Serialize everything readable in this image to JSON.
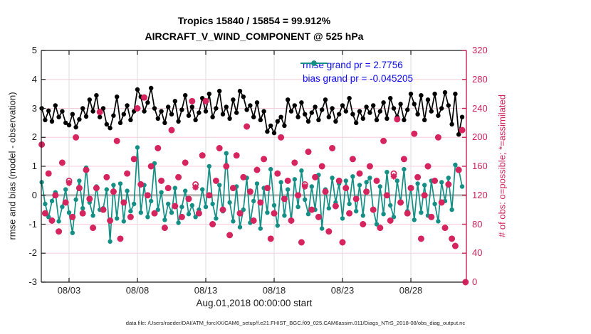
{
  "title": {
    "line1": "Tropics 15840 / 15854 = 99.912%",
    "line2": "AIRCRAFT_V_WIND_COMPONENT @ 525 hPa"
  },
  "legend": {
    "items": [
      {
        "label": "rmse grand pr = 2.7756",
        "series": "rmse",
        "color": "#000000"
      },
      {
        "label": "bias grand pr = -0.045205",
        "series": "bias",
        "color": "#148f85"
      }
    ],
    "text_color": "#0b0bf0"
  },
  "axes": {
    "left": {
      "label": "rmse and bias (model - observation)",
      "ticks": [
        5,
        4,
        3,
        2,
        1,
        0,
        -1,
        -2,
        -3
      ],
      "range": [
        -3,
        5
      ],
      "color": "#1a1a1a"
    },
    "right": {
      "label": "# of obs: o=possible; *=assimilated",
      "ticks": [
        320,
        280,
        240,
        200,
        160,
        120,
        80,
        40,
        0
      ],
      "range": [
        0,
        320
      ],
      "color": "#cb2158"
    },
    "x": {
      "label": "Aug.01,2018 00:00:00 start",
      "ticks": [
        {
          "day": 3,
          "label": "08/03"
        },
        {
          "day": 8,
          "label": "08/08"
        },
        {
          "day": 13,
          "label": "08/13"
        },
        {
          "day": 18,
          "label": "08/18"
        },
        {
          "day": 23,
          "label": "08/23"
        },
        {
          "day": 28,
          "label": "08/28"
        }
      ],
      "domain_days": [
        0.97,
        32.06
      ],
      "tick_text_color": "#262626"
    }
  },
  "footer": "data file: /Users/raeder/DAI/ATM_forcXX/CAM6_setup/f.e21.FHIST_BGC.f09_025.CAM6assim.011/Diags_NTrS_2018-08/obs_diag_output.nc",
  "colors": {
    "crimson": "#cb2158",
    "marker_pink": "#d5245e",
    "teal": "#148f85",
    "black": "#000000",
    "grid_pink": "#f5ced9",
    "grid_gray": "#dcdcdc",
    "zero_line": "#b9b9b9",
    "axis_dark": "#1a1a1a"
  },
  "chart_data": {
    "type": "line",
    "x_start_day": 1.0,
    "x_step_day": 0.25,
    "x_axis_note": "4 verification bins per day starting Aug.01,2018 00:00:00; last bin has zero obs",
    "grid": true,
    "zero_reference_line": 0,
    "series": [
      {
        "name": "rmse",
        "axis": "left",
        "marker": "filled-circle",
        "color": "#000000",
        "grand_value": 2.7756,
        "values": [
          3.0,
          2.6,
          2.92,
          2.55,
          3.1,
          2.7,
          2.9,
          2.5,
          2.42,
          2.8,
          2.35,
          2.62,
          3.0,
          2.72,
          3.3,
          2.9,
          3.45,
          2.7,
          3.0,
          2.45,
          2.32,
          2.75,
          3.4,
          2.5,
          2.8,
          3.1,
          2.6,
          2.9,
          3.65,
          3.4,
          2.9,
          3.2,
          3.7,
          3.0,
          2.65,
          2.9,
          2.5,
          3.05,
          2.8,
          3.25,
          2.55,
          2.95,
          3.45,
          2.75,
          3.05,
          2.6,
          2.85,
          3.35,
          2.9,
          3.5,
          2.7,
          3.0,
          3.6,
          2.8,
          3.05,
          2.65,
          3.3,
          2.85,
          3.6,
          3.4,
          2.95,
          3.1,
          2.7,
          3.2,
          2.6,
          2.9,
          2.2,
          2.4,
          2.15,
          2.55,
          2.7,
          2.4,
          3.3,
          2.9,
          3.1,
          2.7,
          3.2,
          2.8,
          2.55,
          2.85,
          3.05,
          2.6,
          2.95,
          3.3,
          2.7,
          3.0,
          2.55,
          2.8,
          3.1,
          2.9,
          3.35,
          2.8,
          2.5,
          2.9,
          2.65,
          3.05,
          2.85,
          3.1,
          2.6,
          2.9,
          3.2,
          2.65,
          3.35,
          3.0,
          2.7,
          3.15,
          2.6,
          2.95,
          3.5,
          3.15,
          2.8,
          3.45,
          2.6,
          3.3,
          2.9,
          3.5,
          2.75,
          3.0,
          3.55,
          3.1,
          2.45,
          3.5,
          2.1,
          2.7,
          null
        ]
      },
      {
        "name": "bias",
        "axis": "left",
        "marker": "filled-circle",
        "color": "#148f85",
        "grand_value": -0.045205,
        "values": [
          0.45,
          -0.3,
          -0.75,
          -0.2,
          0.1,
          -0.9,
          -0.4,
          0.2,
          -0.6,
          -1.3,
          -0.15,
          0.5,
          -0.45,
          0.95,
          -0.25,
          -0.7,
          0.3,
          -0.5,
          -0.45,
          0.2,
          -1.6,
          0.35,
          -0.8,
          0.4,
          -0.9,
          0.15,
          -0.55,
          -0.3,
          1.65,
          -0.6,
          0.35,
          -0.75,
          -0.2,
          1.1,
          -0.5,
          0.1,
          -0.85,
          -0.3,
          -0.6,
          0.25,
          -0.95,
          -0.4,
          0.15,
          -0.65,
          -0.35,
          -0.75,
          -0.5,
          0.2,
          -0.4,
          1.0,
          -0.3,
          -0.8,
          0.35,
          -0.55,
          1.45,
          -0.25,
          -0.9,
          0.3,
          -1.1,
          -0.5,
          0.6,
          -0.95,
          -0.2,
          0.4,
          -1.15,
          0.25,
          -0.6,
          0.9,
          -0.35,
          -1.05,
          0.45,
          -0.7,
          0.2,
          -0.9,
          0.55,
          -0.4,
          0.85,
          -0.15,
          -0.65,
          0.3,
          -0.5,
          0.7,
          -1.15,
          0.2,
          -0.45,
          0.6,
          -0.25,
          0.4,
          -0.8,
          0.5,
          -0.3,
          0.65,
          -0.55,
          0.35,
          -0.7,
          0.45,
          0.6,
          -0.5,
          -1.0,
          0.3,
          -0.65,
          0.8,
          -0.35,
          -0.75,
          0.5,
          -0.25,
          0.9,
          -0.55,
          0.25,
          -0.85,
          0.4,
          -0.6,
          0.35,
          -0.7,
          0.5,
          -0.3,
          -0.9,
          0.45,
          -0.2,
          0.6,
          -0.5,
          1.05,
          0.9,
          0.3,
          null
        ]
      },
      {
        "name": "possible_obs",
        "axis": "right",
        "marker": "o",
        "color": "#d5245e",
        "total": 15854,
        "values": [
          190,
          95,
          150,
          85,
          120,
          70,
          165,
          110,
          140,
          90,
          200,
          130,
          95,
          155,
          115,
          75,
          130,
          235,
          100,
          145,
          85,
          125,
          195,
          60,
          110,
          150,
          90,
          170,
          240,
          135,
          255,
          120,
          160,
          95,
          185,
          140,
          75,
          130,
          210,
          105,
          145,
          90,
          165,
          115,
          250,
          135,
          95,
          175,
          250,
          120,
          80,
          140,
          185,
          100,
          160,
          65,
          130,
          175,
          95,
          145,
          215,
          125,
          85,
          155,
          110,
          170,
          130,
          60,
          95,
          150,
          200,
          115,
          140,
          85,
          165,
          120,
          55,
          135,
          180,
          100,
          145,
          90,
          160,
          125,
          70,
          185,
          105,
          140,
          55,
          130,
          95,
          170,
          115,
          150,
          80,
          125,
          160,
          100,
          140,
          75,
          195,
          120,
          85,
          150,
          225,
          110,
          170,
          95,
          130,
          205,
          145,
          60,
          120,
          160,
          90,
          140,
          200,
          110,
          75,
          135,
          60,
          50,
          155,
          210,
          0
        ]
      },
      {
        "name": "assimilated_obs",
        "axis": "right",
        "marker": "*",
        "color": "#d5245e",
        "total": 15840,
        "values": [
          190,
          95,
          150,
          85,
          120,
          70,
          165,
          110,
          137,
          90,
          200,
          130,
          95,
          155,
          115,
          75,
          130,
          235,
          100,
          145,
          85,
          125,
          195,
          60,
          110,
          150,
          90,
          170,
          240,
          135,
          255,
          120,
          160,
          95,
          185,
          140,
          75,
          130,
          210,
          105,
          145,
          90,
          165,
          115,
          250,
          131,
          95,
          175,
          250,
          120,
          80,
          140,
          185,
          100,
          160,
          65,
          130,
          175,
          95,
          145,
          215,
          125,
          85,
          155,
          110,
          170,
          130,
          60,
          95,
          150,
          200,
          115,
          140,
          85,
          165,
          120,
          55,
          132,
          180,
          100,
          145,
          90,
          160,
          125,
          70,
          185,
          105,
          140,
          55,
          130,
          95,
          170,
          115,
          150,
          80,
          125,
          160,
          100,
          140,
          75,
          195,
          120,
          85,
          146,
          225,
          110,
          170,
          95,
          130,
          205,
          145,
          60,
          120,
          160,
          90,
          140,
          200,
          110,
          75,
          135,
          60,
          50,
          155,
          210,
          0
        ]
      }
    ]
  }
}
